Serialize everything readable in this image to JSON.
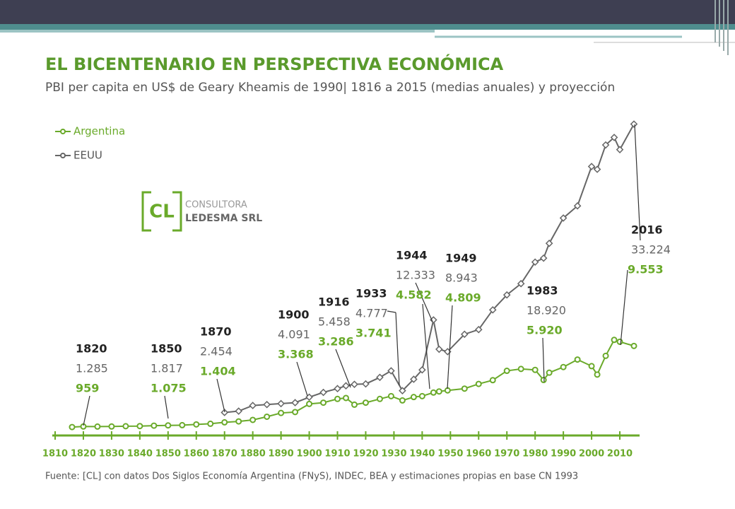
{
  "chart_data": {
    "type": "line",
    "title": "EL BICENTENARIO EN PERSPECTIVA ECONÓMICA",
    "subtitle": "PBI per capita en US$ de Geary Kheamis de 1990| 1816 a 2015 (medias anuales) y proyección",
    "source": "Fuente: [CL] con datos Dos Siglos Economía Argentina (FNyS), INDEC, BEA y estimaciones propias en base CN 1993",
    "logo": {
      "mark": "CL",
      "line1": "CONSULTORA",
      "line2": "LEDESMA SRL"
    },
    "x": [
      1816,
      1820,
      1825,
      1830,
      1835,
      1840,
      1845,
      1850,
      1855,
      1860,
      1865,
      1870,
      1875,
      1880,
      1885,
      1890,
      1895,
      1900,
      1905,
      1910,
      1913,
      1916,
      1920,
      1925,
      1929,
      1933,
      1937,
      1940,
      1944,
      1946,
      1949,
      1955,
      1960,
      1965,
      1970,
      1975,
      1980,
      1983,
      1985,
      1990,
      1995,
      2000,
      2002,
      2005,
      2008,
      2010,
      2015
    ],
    "series": [
      {
        "name": "Argentina",
        "color": "#6aaa2a",
        "values": [
          900,
          959,
          950,
          960,
          990,
          1000,
          1050,
          1075,
          1100,
          1180,
          1250,
          1404,
          1500,
          1660,
          2000,
          2400,
          2500,
          3368,
          3500,
          3900,
          4000,
          3286,
          3500,
          3900,
          4200,
          3741,
          4100,
          4200,
          4582,
          4700,
          4809,
          5000,
          5500,
          5900,
          6900,
          7100,
          7000,
          5920,
          6700,
          7300,
          8100,
          7400,
          6500,
          8500,
          10200,
          10000,
          9553
        ]
      },
      {
        "name": "EEUU",
        "color": "#666666",
        "values": [
          null,
          null,
          null,
          null,
          null,
          null,
          null,
          null,
          null,
          null,
          null,
          2454,
          2600,
          3200,
          3300,
          3400,
          3500,
          4091,
          4600,
          5000,
          5300,
          5458,
          5500,
          6200,
          6900,
          4777,
          6000,
          7000,
          12333,
          9200,
          8943,
          10800,
          11300,
          13400,
          15000,
          16200,
          18500,
          18920,
          20500,
          23200,
          24500,
          28700,
          28400,
          31000,
          31800,
          30500,
          33224
        ]
      }
    ],
    "xlim": [
      1810,
      2016
    ],
    "xticks": [
      1810,
      1820,
      1830,
      1840,
      1850,
      1860,
      1870,
      1880,
      1890,
      1900,
      1910,
      1920,
      1930,
      1940,
      1950,
      1960,
      1970,
      1980,
      1990,
      2000,
      2010
    ],
    "ylim": [
      0,
      35000
    ],
    "annotations": [
      {
        "year": "1820",
        "us": "1.285",
        "ar": "959"
      },
      {
        "year": "1850",
        "us": "1.817",
        "ar": "1.075"
      },
      {
        "year": "1870",
        "us": "2.454",
        "ar": "1.404"
      },
      {
        "year": "1900",
        "us": "4.091",
        "ar": "3.368"
      },
      {
        "year": "1916",
        "us": "5.458",
        "ar": "3.286"
      },
      {
        "year": "1933",
        "us": "4.777",
        "ar": "3.741"
      },
      {
        "year": "1944",
        "us": "12.333",
        "ar": "4.582"
      },
      {
        "year": "1949",
        "us": "8.943",
        "ar": "4.809"
      },
      {
        "year": "1983",
        "us": "18.920",
        "ar": "5.920"
      },
      {
        "year": "2016",
        "us": "33.224",
        "ar": "9.553"
      }
    ]
  }
}
